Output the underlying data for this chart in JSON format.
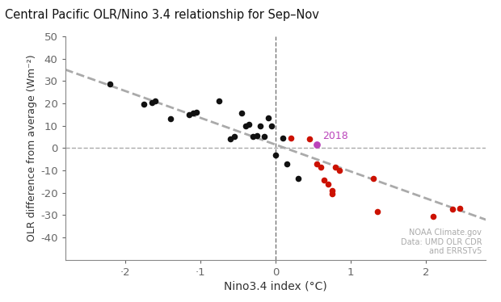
{
  "title": "Central Pacific OLR/Nino 3.4 relationship for Sep–Nov",
  "xlabel": "Nino3.4 index (°C)",
  "ylabel": "OLR difference from average (Wm⁻²)",
  "xlim": [
    -2.8,
    2.8
  ],
  "ylim": [
    -50,
    50
  ],
  "xticks": [
    -2,
    -1,
    0,
    1,
    2
  ],
  "yticks": [
    -40,
    -30,
    -20,
    -10,
    0,
    10,
    20,
    30,
    40,
    50
  ],
  "black_points": [
    [
      -2.2,
      28.5
    ],
    [
      -1.75,
      19.5
    ],
    [
      -1.65,
      20.5
    ],
    [
      -1.6,
      21.0
    ],
    [
      -1.4,
      13.0
    ],
    [
      -1.15,
      15.0
    ],
    [
      -1.1,
      15.5
    ],
    [
      -1.05,
      16.0
    ],
    [
      -0.75,
      21.0
    ],
    [
      -0.6,
      4.0
    ],
    [
      -0.55,
      5.0
    ],
    [
      -0.45,
      15.5
    ],
    [
      -0.4,
      10.0
    ],
    [
      -0.35,
      10.5
    ],
    [
      -0.3,
      5.0
    ],
    [
      -0.25,
      5.5
    ],
    [
      -0.2,
      10.0
    ],
    [
      -0.15,
      5.0
    ],
    [
      -0.1,
      13.5
    ],
    [
      -0.05,
      10.0
    ],
    [
      0.1,
      4.5
    ],
    [
      0.0,
      -3.0
    ],
    [
      0.15,
      -7.0
    ],
    [
      0.3,
      -13.5
    ]
  ],
  "red_points": [
    [
      0.2,
      4.5
    ],
    [
      0.45,
      4.0
    ],
    [
      0.55,
      -7.0
    ],
    [
      0.6,
      -8.5
    ],
    [
      0.65,
      -14.5
    ],
    [
      0.7,
      -16.0
    ],
    [
      0.75,
      -20.5
    ],
    [
      0.75,
      -19.0
    ],
    [
      0.8,
      -8.5
    ],
    [
      0.85,
      -10.0
    ],
    [
      1.3,
      -13.5
    ],
    [
      1.35,
      -28.5
    ],
    [
      2.1,
      -30.5
    ],
    [
      2.35,
      -27.5
    ],
    [
      2.45,
      -27.0
    ]
  ],
  "highlight_point": [
    0.55,
    1.5
  ],
  "highlight_label": "2018",
  "highlight_color": "#bb44bb",
  "black_color": "#111111",
  "red_color": "#cc1100",
  "regression_x_start": -2.8,
  "regression_x_end": 2.8,
  "regression_slope": -12.0,
  "regression_intercept": 1.5,
  "background_color": "#ffffff",
  "watermark_line1": "NOAA Climate.gov",
  "watermark_line2": "Data: UMD OLR CDR",
  "watermark_line3": "and ERRSTv5",
  "watermark_color": "#aaaaaa",
  "grid_color": "#aaaaaa",
  "spine_color": "#888888"
}
